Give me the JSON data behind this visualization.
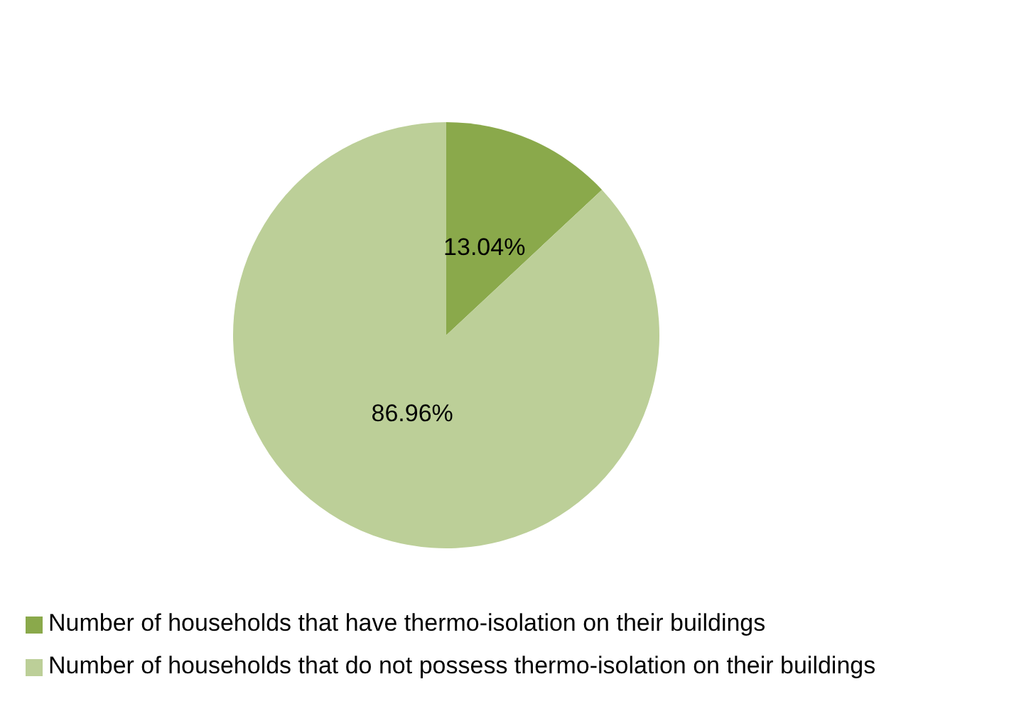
{
  "chart_data": {
    "type": "pie",
    "categories": [
      "Number of households that have thermo-isolation on their buildings",
      "Number of households that do not possess thermo-isolation on their buildings"
    ],
    "values": [
      13.04,
      86.96
    ],
    "colors": [
      "#8aa94b",
      "#bccf98"
    ],
    "value_labels": [
      "13.04%",
      "86.96%"
    ],
    "legend": "bottom"
  }
}
